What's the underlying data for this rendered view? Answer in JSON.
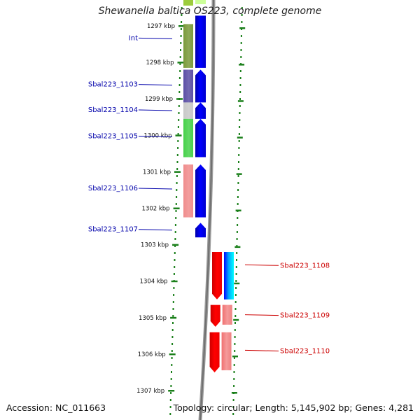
{
  "title": "Shewanella baltica OS223, complete genome",
  "footer": {
    "accession_label": "Accession:",
    "accession": "NC_011663",
    "topology_label": "Topology:",
    "topology": "circular;",
    "length_label": "Length:",
    "length": "5,145,902 bp;",
    "genes_label": "Genes:",
    "genes": "4,281"
  },
  "ruler": {
    "unit": "kbp",
    "ticks": [
      {
        "label": "1297 kbp",
        "kbp": 1297
      },
      {
        "label": "1298 kbp",
        "kbp": 1298
      },
      {
        "label": "1299 kbp",
        "kbp": 1299
      },
      {
        "label": "1300 kbp",
        "kbp": 1300
      },
      {
        "label": "1301 kbp",
        "kbp": 1301
      },
      {
        "label": "1302 kbp",
        "kbp": 1302
      },
      {
        "label": "1303 kbp",
        "kbp": 1303
      },
      {
        "label": "1304 kbp",
        "kbp": 1304
      },
      {
        "label": "1305 kbp",
        "kbp": 1305
      },
      {
        "label": "1306 kbp",
        "kbp": 1306
      },
      {
        "label": "1307 kbp",
        "kbp": 1307
      }
    ]
  },
  "left_genes": [
    {
      "label": "Int",
      "start_kbp": 1296.95,
      "end_kbp": 1298.15,
      "color": "#7a9a3a",
      "strand": "reverse"
    },
    {
      "label": "Sbal223_1103",
      "start_kbp": 1298.2,
      "end_kbp": 1299.1,
      "color": "#5b4ea5",
      "strand": "reverse"
    },
    {
      "label": "Sbal223_1104",
      "start_kbp": 1299.1,
      "end_kbp": 1299.55,
      "color": "#c8c8c8",
      "strand": "reverse"
    },
    {
      "label": "Sbal223_1105",
      "start_kbp": 1299.55,
      "end_kbp": 1300.6,
      "color": "#47d14a",
      "strand": "reverse"
    },
    {
      "label": "Sbal223_1106",
      "start_kbp": 1300.8,
      "end_kbp": 1302.25,
      "color": "#f08c8c",
      "strand": "reverse"
    },
    {
      "label": "Sbal223_1107",
      "start_kbp": 1302.4,
      "end_kbp": 1302.8,
      "color": "#0000ff",
      "strand": "reverse"
    }
  ],
  "right_genes": [
    {
      "label": "Sbal223_1108",
      "start_kbp": 1303.2,
      "end_kbp": 1304.5,
      "color": "#ff0000",
      "strand": "forward"
    },
    {
      "label": "Sbal223_1109",
      "start_kbp": 1304.65,
      "end_kbp": 1305.25,
      "color": "#ff0000",
      "strand": "forward"
    },
    {
      "label": "Sbal223_1110",
      "start_kbp": 1305.4,
      "end_kbp": 1306.5,
      "color": "#ff0000",
      "strand": "forward"
    }
  ],
  "colors": {
    "ruler": "#1a7f1a",
    "backbone": "#808080",
    "left_label": "#0000aa",
    "right_label": "#cc0000",
    "cds_blue": "#0000ff",
    "cds_red": "#ff0000",
    "cds_pink": "#f08c8c"
  }
}
